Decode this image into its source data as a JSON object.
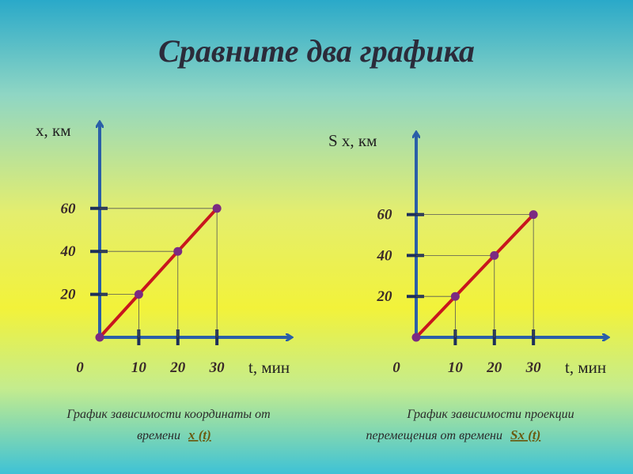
{
  "title": "Сравните два графика",
  "chart_data": [
    {
      "type": "line",
      "y_label": "x, км",
      "x_label": "t, мин",
      "x": [
        0,
        10,
        20,
        30
      ],
      "values": [
        0,
        20,
        40,
        60
      ],
      "color": "#c8161e",
      "point_color": "#7b2a82",
      "xlim": [
        0,
        49
      ],
      "ylim": [
        0,
        100
      ],
      "xticks": [
        0,
        10,
        20,
        30
      ],
      "yticks": [
        20,
        40,
        60
      ],
      "caption_lines": [
        "График зависимости координаты от",
        "времени"
      ],
      "formula": "x (t)"
    },
    {
      "type": "line",
      "y_label": "S x, км",
      "x_label": "t, мин",
      "x": [
        0,
        10,
        20,
        30
      ],
      "values": [
        0,
        20,
        40,
        60
      ],
      "color": "#c8161e",
      "point_color": "#7b2a82",
      "xlim": [
        0,
        49
      ],
      "ylim": [
        0,
        100
      ],
      "xticks": [
        0,
        10,
        20,
        30
      ],
      "yticks": [
        20,
        40,
        60
      ],
      "caption_lines": [
        "График зависимости проекции",
        "перемещения от времени"
      ],
      "formula": "Sx (t)"
    }
  ]
}
